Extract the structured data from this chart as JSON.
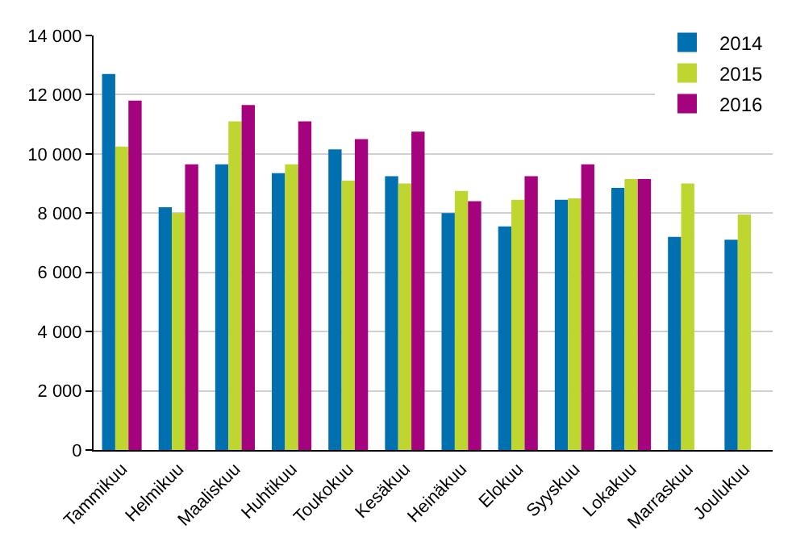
{
  "chart_data": {
    "type": "bar",
    "categories": [
      "Tammikuu",
      "Helmikuu",
      "Maaliskuu",
      "Huhtikuu",
      "Toukokuu",
      "Kesäkuu",
      "Heinäkuu",
      "Elokuu",
      "Syyskuu",
      "Lokakuu",
      "Marraskuu",
      "Joulukuu"
    ],
    "series": [
      {
        "name": "2014",
        "color": "#0070b0",
        "values": [
          12700,
          8200,
          9650,
          9350,
          10150,
          9250,
          8000,
          7550,
          8450,
          8850,
          7200,
          7100
        ]
      },
      {
        "name": "2015",
        "color": "#bed62f",
        "values": [
          10250,
          8000,
          11100,
          9650,
          9100,
          9000,
          8750,
          8450,
          8500,
          9150,
          9000,
          7950
        ]
      },
      {
        "name": "2016",
        "color": "#a5027d",
        "values": [
          11800,
          9650,
          11650,
          11100,
          10500,
          10750,
          8400,
          9250,
          9650,
          9150,
          null,
          null
        ]
      }
    ],
    "ylim": [
      0,
      14000
    ],
    "yticks": [
      {
        "value": 0,
        "label": "0"
      },
      {
        "value": 2000,
        "label": "2 000"
      },
      {
        "value": 4000,
        "label": "4 000"
      },
      {
        "value": 6000,
        "label": "6 000"
      },
      {
        "value": 8000,
        "label": "8 000"
      },
      {
        "value": 10000,
        "label": "10 000"
      },
      {
        "value": 12000,
        "label": "12 000"
      },
      {
        "value": 14000,
        "label": "14 000"
      }
    ],
    "grid": "y",
    "legend": "top right"
  }
}
